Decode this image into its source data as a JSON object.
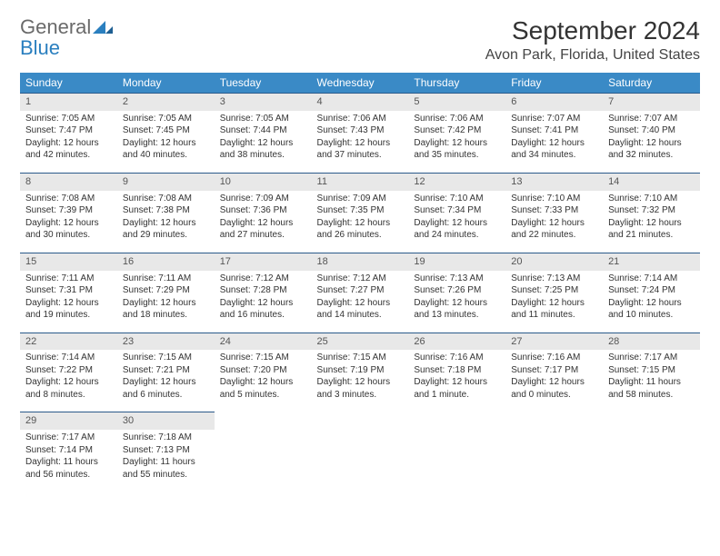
{
  "logo": {
    "line1": "General",
    "line2": "Blue"
  },
  "title": "September 2024",
  "subtitle": "Avon Park, Florida, United States",
  "colors": {
    "header_bg": "#3a8ac6",
    "header_fg": "#ffffff",
    "daynum_bg": "#e8e8e8",
    "daynum_border": "#2a5a8a",
    "logo_gray": "#6a6a6a",
    "logo_blue": "#2a7fbf"
  },
  "weekdays": [
    "Sunday",
    "Monday",
    "Tuesday",
    "Wednesday",
    "Thursday",
    "Friday",
    "Saturday"
  ],
  "weeks": [
    [
      {
        "n": "1",
        "sunrise": "7:05 AM",
        "sunset": "7:47 PM",
        "daylight": "12 hours and 42 minutes."
      },
      {
        "n": "2",
        "sunrise": "7:05 AM",
        "sunset": "7:45 PM",
        "daylight": "12 hours and 40 minutes."
      },
      {
        "n": "3",
        "sunrise": "7:05 AM",
        "sunset": "7:44 PM",
        "daylight": "12 hours and 38 minutes."
      },
      {
        "n": "4",
        "sunrise": "7:06 AM",
        "sunset": "7:43 PM",
        "daylight": "12 hours and 37 minutes."
      },
      {
        "n": "5",
        "sunrise": "7:06 AM",
        "sunset": "7:42 PM",
        "daylight": "12 hours and 35 minutes."
      },
      {
        "n": "6",
        "sunrise": "7:07 AM",
        "sunset": "7:41 PM",
        "daylight": "12 hours and 34 minutes."
      },
      {
        "n": "7",
        "sunrise": "7:07 AM",
        "sunset": "7:40 PM",
        "daylight": "12 hours and 32 minutes."
      }
    ],
    [
      {
        "n": "8",
        "sunrise": "7:08 AM",
        "sunset": "7:39 PM",
        "daylight": "12 hours and 30 minutes."
      },
      {
        "n": "9",
        "sunrise": "7:08 AM",
        "sunset": "7:38 PM",
        "daylight": "12 hours and 29 minutes."
      },
      {
        "n": "10",
        "sunrise": "7:09 AM",
        "sunset": "7:36 PM",
        "daylight": "12 hours and 27 minutes."
      },
      {
        "n": "11",
        "sunrise": "7:09 AM",
        "sunset": "7:35 PM",
        "daylight": "12 hours and 26 minutes."
      },
      {
        "n": "12",
        "sunrise": "7:10 AM",
        "sunset": "7:34 PM",
        "daylight": "12 hours and 24 minutes."
      },
      {
        "n": "13",
        "sunrise": "7:10 AM",
        "sunset": "7:33 PM",
        "daylight": "12 hours and 22 minutes."
      },
      {
        "n": "14",
        "sunrise": "7:10 AM",
        "sunset": "7:32 PM",
        "daylight": "12 hours and 21 minutes."
      }
    ],
    [
      {
        "n": "15",
        "sunrise": "7:11 AM",
        "sunset": "7:31 PM",
        "daylight": "12 hours and 19 minutes."
      },
      {
        "n": "16",
        "sunrise": "7:11 AM",
        "sunset": "7:29 PM",
        "daylight": "12 hours and 18 minutes."
      },
      {
        "n": "17",
        "sunrise": "7:12 AM",
        "sunset": "7:28 PM",
        "daylight": "12 hours and 16 minutes."
      },
      {
        "n": "18",
        "sunrise": "7:12 AM",
        "sunset": "7:27 PM",
        "daylight": "12 hours and 14 minutes."
      },
      {
        "n": "19",
        "sunrise": "7:13 AM",
        "sunset": "7:26 PM",
        "daylight": "12 hours and 13 minutes."
      },
      {
        "n": "20",
        "sunrise": "7:13 AM",
        "sunset": "7:25 PM",
        "daylight": "12 hours and 11 minutes."
      },
      {
        "n": "21",
        "sunrise": "7:14 AM",
        "sunset": "7:24 PM",
        "daylight": "12 hours and 10 minutes."
      }
    ],
    [
      {
        "n": "22",
        "sunrise": "7:14 AM",
        "sunset": "7:22 PM",
        "daylight": "12 hours and 8 minutes."
      },
      {
        "n": "23",
        "sunrise": "7:15 AM",
        "sunset": "7:21 PM",
        "daylight": "12 hours and 6 minutes."
      },
      {
        "n": "24",
        "sunrise": "7:15 AM",
        "sunset": "7:20 PM",
        "daylight": "12 hours and 5 minutes."
      },
      {
        "n": "25",
        "sunrise": "7:15 AM",
        "sunset": "7:19 PM",
        "daylight": "12 hours and 3 minutes."
      },
      {
        "n": "26",
        "sunrise": "7:16 AM",
        "sunset": "7:18 PM",
        "daylight": "12 hours and 1 minute."
      },
      {
        "n": "27",
        "sunrise": "7:16 AM",
        "sunset": "7:17 PM",
        "daylight": "12 hours and 0 minutes."
      },
      {
        "n": "28",
        "sunrise": "7:17 AM",
        "sunset": "7:15 PM",
        "daylight": "11 hours and 58 minutes."
      }
    ],
    [
      {
        "n": "29",
        "sunrise": "7:17 AM",
        "sunset": "7:14 PM",
        "daylight": "11 hours and 56 minutes."
      },
      {
        "n": "30",
        "sunrise": "7:18 AM",
        "sunset": "7:13 PM",
        "daylight": "11 hours and 55 minutes."
      },
      null,
      null,
      null,
      null,
      null
    ]
  ],
  "labels": {
    "sunrise": "Sunrise:",
    "sunset": "Sunset:",
    "daylight": "Daylight:"
  }
}
